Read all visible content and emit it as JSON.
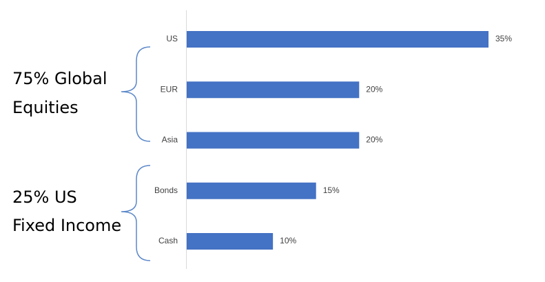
{
  "chart_data": {
    "type": "bar",
    "orientation": "horizontal",
    "categories": [
      "US",
      "EUR",
      "Asia",
      "Bonds",
      "Cash"
    ],
    "values": [
      35,
      20,
      20,
      15,
      10
    ],
    "value_labels": [
      "35%",
      "20%",
      "20%",
      "15%",
      "10%"
    ],
    "color": "#4472c4",
    "annotations": [
      {
        "lines": [
          "75% Global",
          "Equities"
        ]
      },
      {
        "lines": [
          "25% US",
          "Fixed Income"
        ]
      }
    ]
  }
}
